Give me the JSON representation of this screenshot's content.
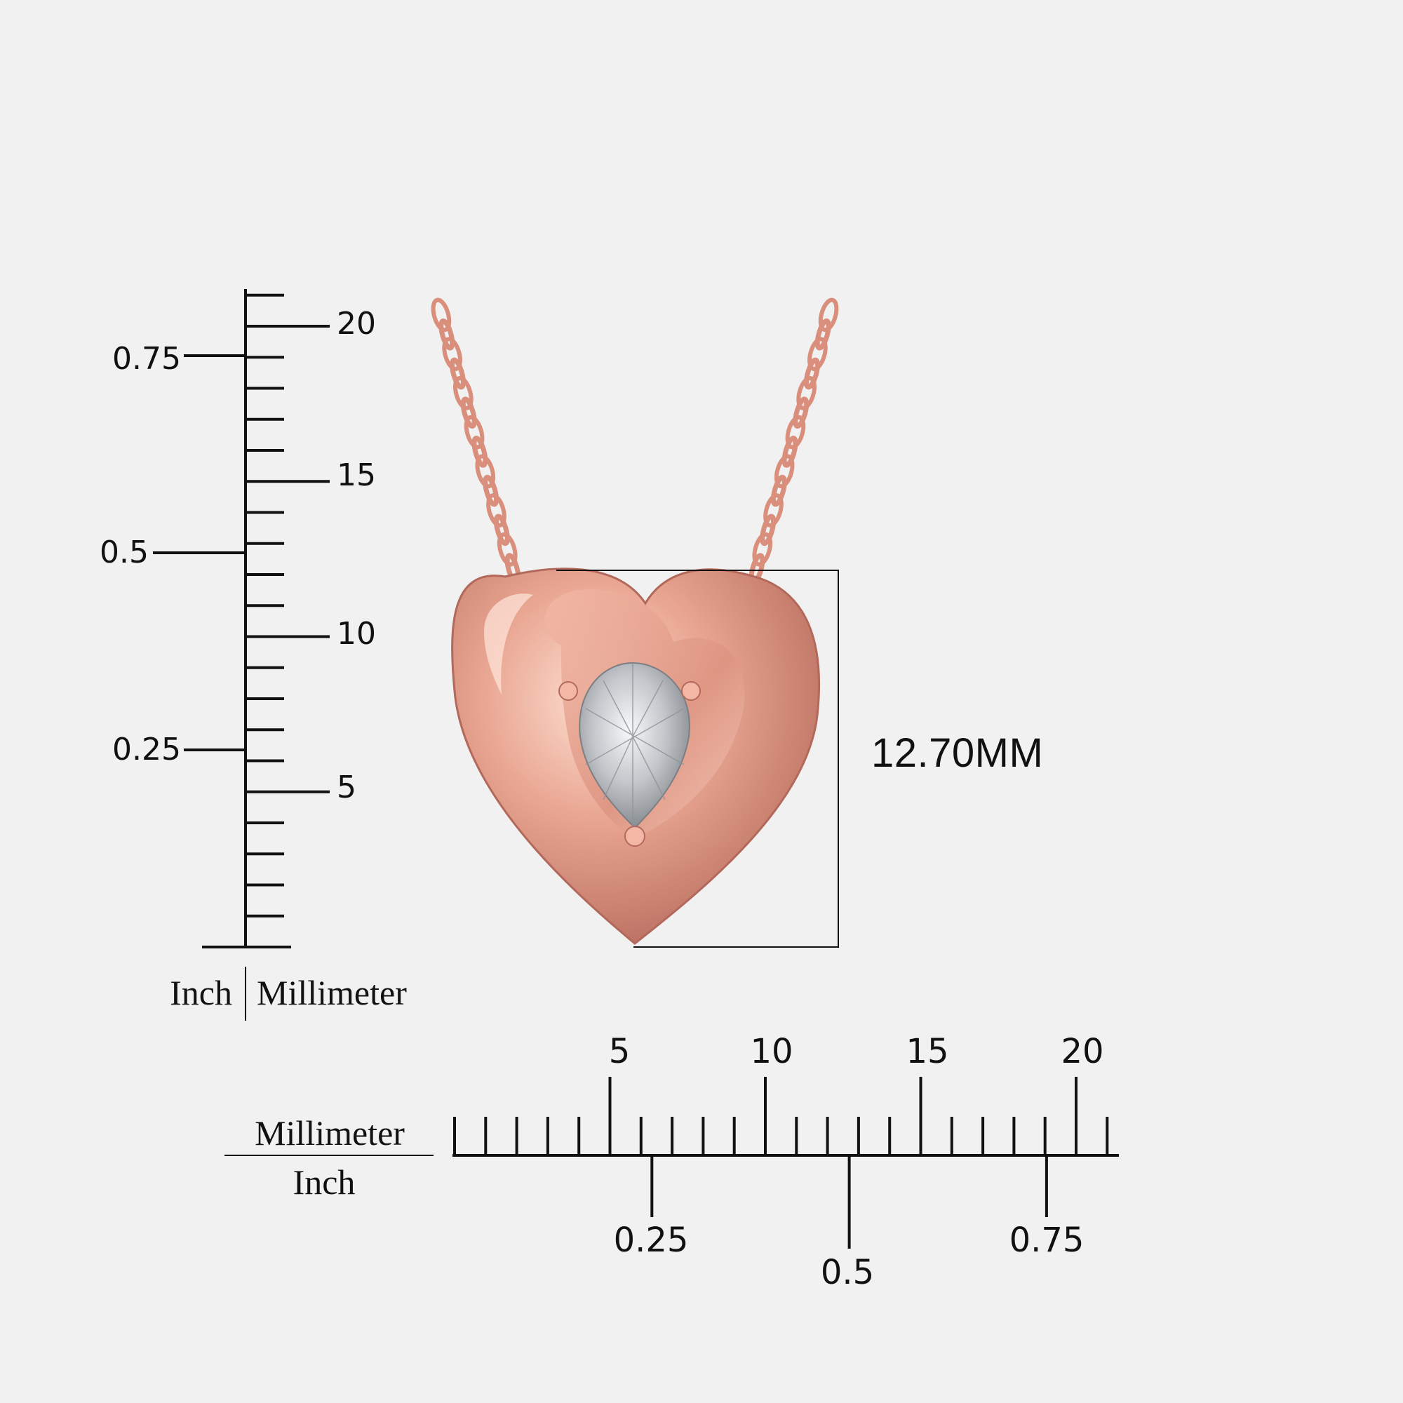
{
  "vertical_ruler": {
    "mm_label": "Millimeter",
    "inch_label": "Inch",
    "mm_ticks": [
      "5",
      "10",
      "15",
      "20"
    ],
    "inch_ticks": [
      "0.25",
      "0.5",
      "0.75"
    ]
  },
  "horizontal_ruler": {
    "mm_label": "Millimeter",
    "inch_label": "Inch",
    "mm_ticks": [
      "5",
      "10",
      "15",
      "20"
    ],
    "inch_ticks": [
      "0.25",
      "0.5",
      "0.75"
    ]
  },
  "dimension": {
    "label": "12.70MM"
  },
  "product": {
    "metal_color": "#e8a591",
    "metal_dark": "#c9776a",
    "stone_color": "#cfd2d6"
  }
}
